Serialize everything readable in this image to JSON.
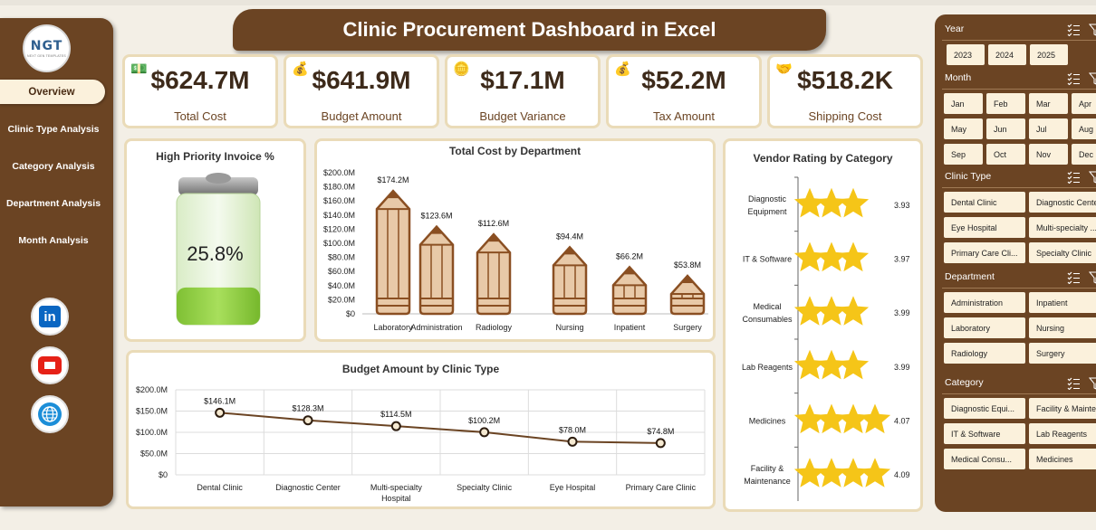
{
  "title": "Clinic Procurement Dashboard in Excel",
  "logo": {
    "text": "NGT",
    "sub": "NEXT GEN TEMPLATES"
  },
  "nav": [
    "Overview",
    "Clinic Type Analysis",
    "Category Analysis",
    "Department Analysis",
    "Month Analysis"
  ],
  "social": [
    {
      "icon": "linkedin-icon",
      "text": "in"
    },
    {
      "icon": "youtube-icon"
    },
    {
      "icon": "globe-icon"
    }
  ],
  "kpis": [
    {
      "value": "$624.7M",
      "label": "Total Cost",
      "icon": "money-icon"
    },
    {
      "value": "$641.9M",
      "label": "Budget Amount",
      "icon": "money-bag-icon"
    },
    {
      "value": "$17.1M",
      "label": "Budget Variance",
      "icon": "coin-icon"
    },
    {
      "value": "$52.2M",
      "label": "Tax Amount",
      "icon": "money-bag-icon"
    },
    {
      "value": "$518.2K",
      "label": "Shipping Cost",
      "icon": "handshake-icon"
    }
  ],
  "high_priority": {
    "title": "High Priority Invoice %",
    "value": "25.8%",
    "fraction": 0.258
  },
  "dept_chart": {
    "title": "Total Cost by Department",
    "yticks": [
      "$0",
      "$20.0M",
      "$40.0M",
      "$60.0M",
      "$80.0M",
      "$100.0M",
      "$120.0M",
      "$140.0M",
      "$160.0M",
      "$180.0M",
      "$200.0M"
    ],
    "categories": [
      "Laboratory",
      "Administration",
      "Radiology",
      "Nursing",
      "Inpatient",
      "Surgery"
    ],
    "labels": [
      "$174.2M",
      "$123.6M",
      "$112.6M",
      "$94.4M",
      "$66.2M",
      "$53.8M"
    ],
    "values": [
      174.2,
      123.6,
      112.6,
      94.4,
      66.2,
      53.8
    ],
    "ymax": 200
  },
  "clinic_chart": {
    "title": "Budget Amount by Clinic Type",
    "yticks": [
      "$0",
      "$50.0M",
      "$100.0M",
      "$150.0M",
      "$200.0M"
    ],
    "categories": [
      "Dental Clinic",
      "Diagnostic Center",
      "Multi-specialty Hospital",
      "Specialty Clinic",
      "Eye Hospital",
      "Primary Care Clinic"
    ],
    "labels": [
      "$146.1M",
      "$128.3M",
      "$114.5M",
      "$100.2M",
      "$78.0M",
      "$74.8M"
    ],
    "values": [
      146.1,
      128.3,
      114.5,
      100.2,
      78.0,
      74.8
    ],
    "ymax": 200
  },
  "vendor_chart": {
    "title": "Vendor Rating by Category",
    "categories": [
      "Diagnostic Equipment",
      "IT & Software",
      "Medical Consumables",
      "Lab Reagents",
      "Medicines",
      "Facility & Maintenance"
    ],
    "ratings": [
      "3.93",
      "3.97",
      "3.99",
      "3.99",
      "4.07",
      "4.09"
    ]
  },
  "chart_data": [
    {
      "type": "bar",
      "title": "Total Cost by Department",
      "categories": [
        "Laboratory",
        "Administration",
        "Radiology",
        "Nursing",
        "Inpatient",
        "Surgery"
      ],
      "values": [
        174.2,
        123.6,
        112.6,
        94.4,
        66.2,
        53.8
      ],
      "ylim": [
        0,
        200
      ]
    },
    {
      "type": "line",
      "title": "Budget Amount by Clinic Type",
      "categories": [
        "Dental Clinic",
        "Diagnostic Center",
        "Multi-specialty Hospital",
        "Specialty Clinic",
        "Eye Hospital",
        "Primary Care Clinic"
      ],
      "values": [
        146.1,
        128.3,
        114.5,
        100.2,
        78.0,
        74.8
      ],
      "ylim": [
        0,
        200
      ]
    },
    {
      "type": "bar",
      "title": "Vendor Rating by Category",
      "categories": [
        "Diagnostic Equipment",
        "IT & Software",
        "Medical Consumables",
        "Lab Reagents",
        "Medicines",
        "Facility & Maintenance"
      ],
      "values": [
        3.93,
        3.97,
        3.99,
        3.99,
        4.07,
        4.09
      ]
    }
  ],
  "filters": {
    "year": {
      "label": "Year",
      "items": [
        "2023",
        "2024",
        "2025"
      ]
    },
    "month": {
      "label": "Month",
      "items": [
        "Jan",
        "Feb",
        "Mar",
        "Apr",
        "May",
        "Jun",
        "Jul",
        "Aug",
        "Sep",
        "Oct",
        "Nov",
        "Dec"
      ]
    },
    "clinic": {
      "label": "Clinic Type",
      "items": [
        "Dental Clinic",
        "Diagnostic Center",
        "Eye Hospital",
        "Multi-specialty ...",
        "Primary Care Cli...",
        "Specialty Clinic"
      ]
    },
    "department": {
      "label": "Department",
      "items": [
        "Administration",
        "Inpatient",
        "Laboratory",
        "Nursing",
        "Radiology",
        "Surgery"
      ]
    },
    "category": {
      "label": "Category",
      "items": [
        "Diagnostic Equi...",
        "Facility & Mainte...",
        "IT & Software",
        "Lab Reagents",
        "Medical Consu...",
        "Medicines"
      ]
    }
  },
  "colors": {
    "brown": "#6b4423",
    "cream": "#fbf1dc",
    "pencil": "#e4c29f",
    "star": "#f5c518",
    "battery": "#8fce3f"
  }
}
